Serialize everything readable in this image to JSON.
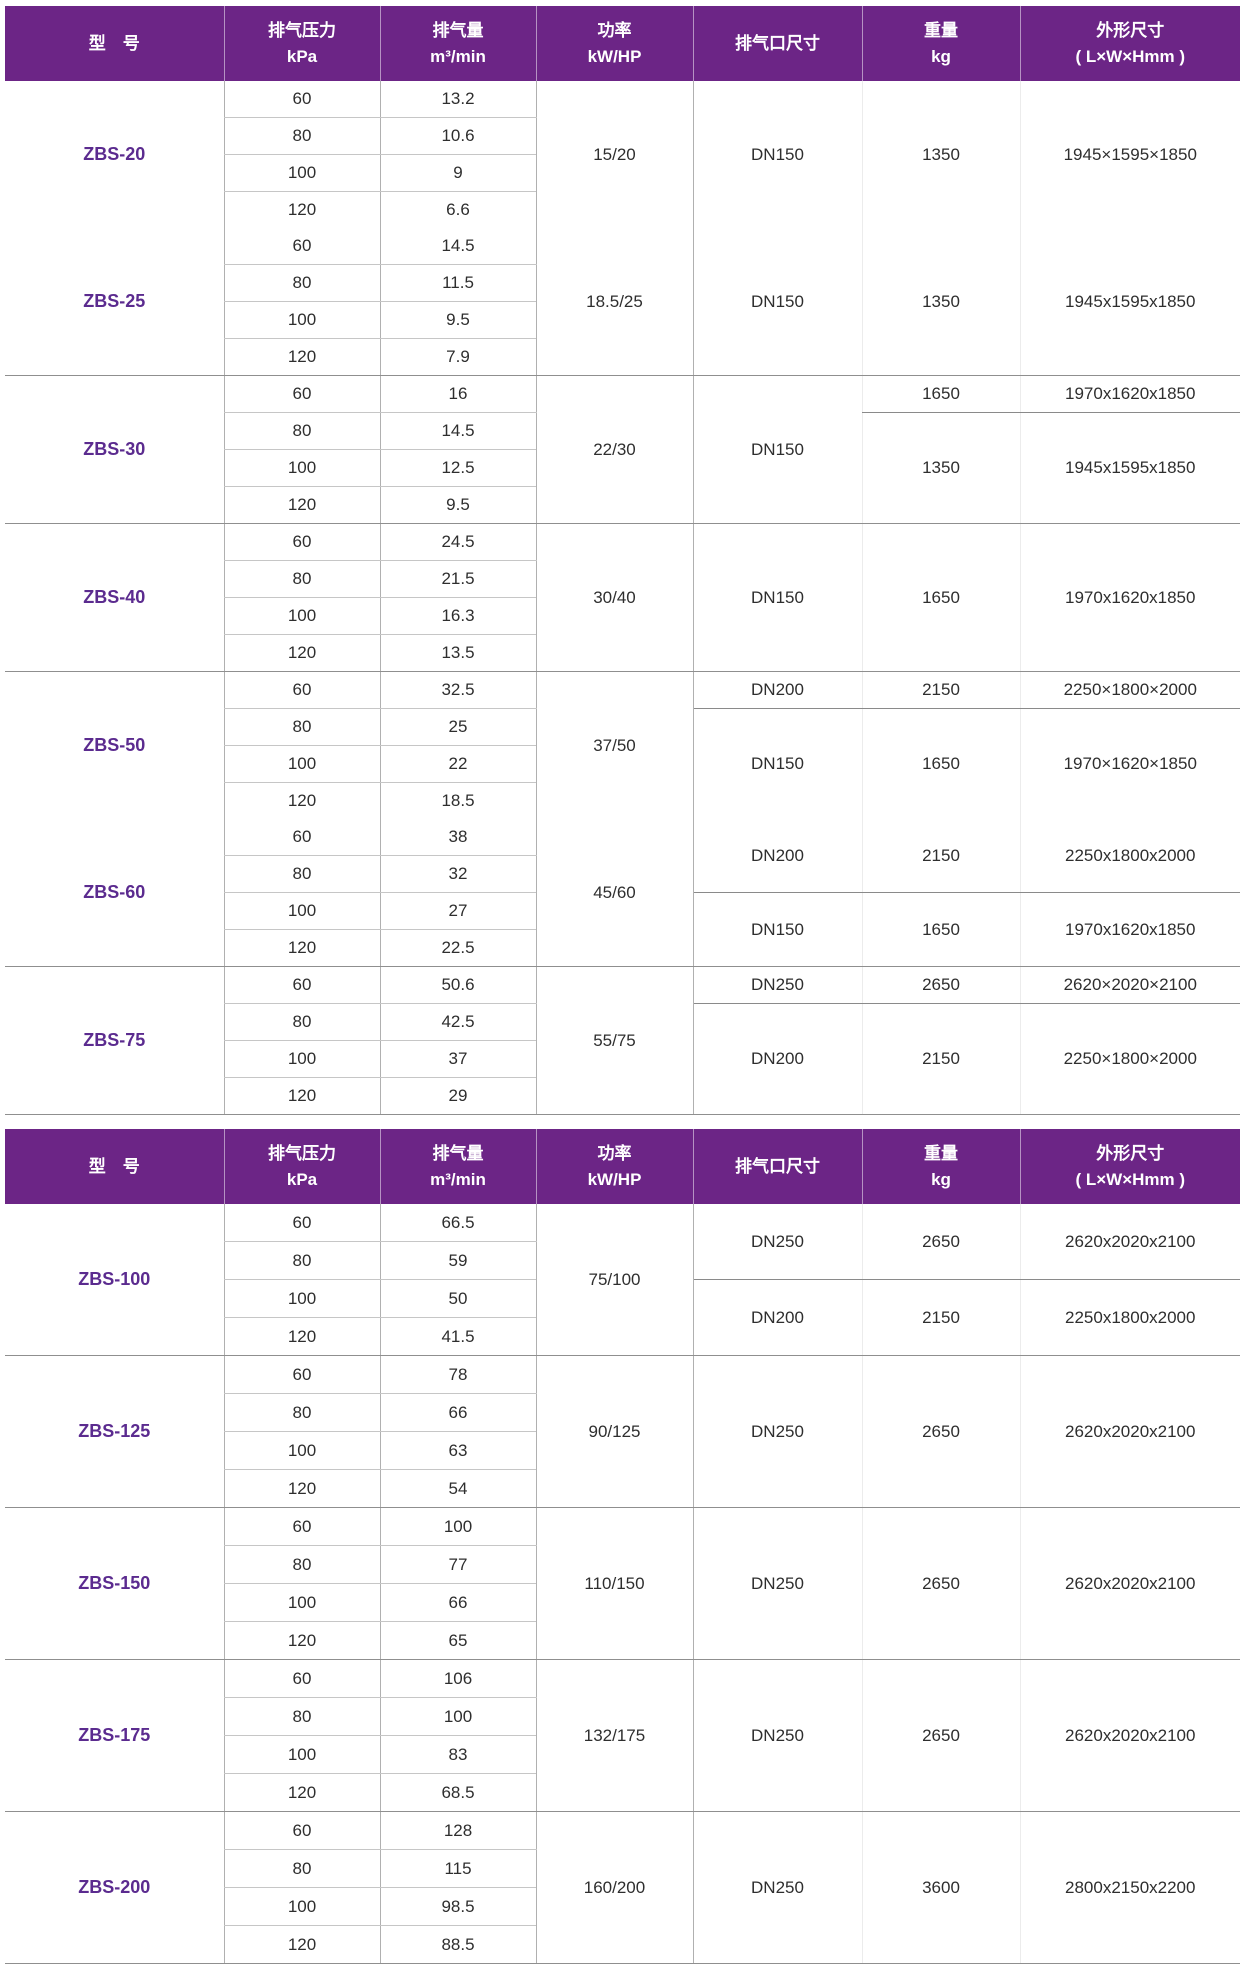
{
  "table": {
    "columns": {
      "model": [
        "型　号"
      ],
      "pressure": [
        "排气压力",
        "kPa"
      ],
      "volume": [
        "排气量",
        "m³/min"
      ],
      "power": [
        "功率",
        "kW/HP"
      ],
      "port": [
        "排气口尺寸"
      ],
      "weight": [
        "重量",
        "kg"
      ],
      "dims": [
        "外形尺寸",
        "( L×W×Hmm )"
      ]
    },
    "colors": {
      "header_bg": "#6C2586",
      "header_text": "#ffffff",
      "model_text": "#5B2B8F",
      "body_text": "#2e2e2e"
    },
    "sections": [
      {
        "models": [
          {
            "name": "ZBS-20",
            "power": "15/20",
            "rows": [
              [
                "60",
                "13.2"
              ],
              [
                "80",
                "10.6"
              ],
              [
                "100",
                "9"
              ],
              [
                "120",
                "6.6"
              ]
            ],
            "ports": [
              {
                "value": "DN150",
                "span": 4
              }
            ],
            "specs": [
              {
                "weight": "1350",
                "dims": "1945×1595×1850",
                "span": 4
              }
            ],
            "separator_after": false
          },
          {
            "name": "ZBS-25",
            "power": "18.5/25",
            "rows": [
              [
                "60",
                "14.5"
              ],
              [
                "80",
                "11.5"
              ],
              [
                "100",
                "9.5"
              ],
              [
                "120",
                "7.9"
              ]
            ],
            "ports": [
              {
                "value": "DN150",
                "span": 4
              }
            ],
            "specs": [
              {
                "weight": "1350",
                "dims": "1945x1595x1850",
                "span": 4
              }
            ],
            "separator_after": true
          },
          {
            "name": "ZBS-30",
            "power": "22/30",
            "rows": [
              [
                "60",
                "16"
              ],
              [
                "80",
                "14.5"
              ],
              [
                "100",
                "12.5"
              ],
              [
                "120",
                "9.5"
              ]
            ],
            "ports": [
              {
                "value": "DN150",
                "span": 4
              }
            ],
            "specs": [
              {
                "weight": "1650",
                "dims": "1970x1620x1850",
                "span": 1
              },
              {
                "weight": "1350",
                "dims": "1945x1595x1850",
                "span": 3
              }
            ],
            "separator_after": true
          },
          {
            "name": "ZBS-40",
            "power": "30/40",
            "rows": [
              [
                "60",
                "24.5"
              ],
              [
                "80",
                "21.5"
              ],
              [
                "100",
                "16.3"
              ],
              [
                "120",
                "13.5"
              ]
            ],
            "ports": [
              {
                "value": "DN150",
                "span": 4
              }
            ],
            "specs": [
              {
                "weight": "1650",
                "dims": "1970x1620x1850",
                "span": 4
              }
            ],
            "separator_after": true
          },
          {
            "name": "ZBS-50",
            "power": "37/50",
            "rows": [
              [
                "60",
                "32.5"
              ],
              [
                "80",
                "25"
              ],
              [
                "100",
                "22"
              ],
              [
                "120",
                "18.5"
              ]
            ],
            "ports": [
              {
                "value": "DN200",
                "span": 1
              },
              {
                "value": "DN150",
                "span": 3
              }
            ],
            "specs": [
              {
                "weight": "2150",
                "dims": "2250×1800×2000",
                "span": 1
              },
              {
                "weight": "1650",
                "dims": "1970×1620×1850",
                "span": 3
              }
            ],
            "separator_after": false
          },
          {
            "name": "ZBS-60",
            "power": "45/60",
            "rows": [
              [
                "60",
                "38"
              ],
              [
                "80",
                "32"
              ],
              [
                "100",
                "27"
              ],
              [
                "120",
                "22.5"
              ]
            ],
            "ports": [
              {
                "value": "DN200",
                "span": 2
              },
              {
                "value": "DN150",
                "span": 2
              }
            ],
            "specs": [
              {
                "weight": "2150",
                "dims": "2250x1800x2000",
                "span": 2
              },
              {
                "weight": "1650",
                "dims": "1970x1620x1850",
                "span": 2
              }
            ],
            "separator_after": true
          },
          {
            "name": "ZBS-75",
            "power": "55/75",
            "rows": [
              [
                "60",
                "50.6"
              ],
              [
                "80",
                "42.5"
              ],
              [
                "100",
                "37"
              ],
              [
                "120",
                "29"
              ]
            ],
            "ports": [
              {
                "value": "DN250",
                "span": 1
              },
              {
                "value": "DN200",
                "span": 3
              }
            ],
            "specs": [
              {
                "weight": "2650",
                "dims": "2620×2020×2100",
                "span": 1
              },
              {
                "weight": "2150",
                "dims": "2250×1800×2000",
                "span": 3
              }
            ],
            "separator_after": true
          }
        ]
      },
      {
        "models": [
          {
            "name": "ZBS-100",
            "power": "75/100",
            "rows": [
              [
                "60",
                "66.5"
              ],
              [
                "80",
                "59"
              ],
              [
                "100",
                "50"
              ],
              [
                "120",
                "41.5"
              ]
            ],
            "ports": [
              {
                "value": "DN250",
                "span": 2
              },
              {
                "value": "DN200",
                "span": 2
              }
            ],
            "specs": [
              {
                "weight": "2650",
                "dims": "2620x2020x2100",
                "span": 2
              },
              {
                "weight": "2150",
                "dims": "2250x1800x2000",
                "span": 2
              }
            ],
            "separator_after": true
          },
          {
            "name": "ZBS-125",
            "power": "90/125",
            "rows": [
              [
                "60",
                "78"
              ],
              [
                "80",
                "66"
              ],
              [
                "100",
                "63"
              ],
              [
                "120",
                "54"
              ]
            ],
            "ports": [
              {
                "value": "DN250",
                "span": 4
              }
            ],
            "specs": [
              {
                "weight": "2650",
                "dims": "2620x2020x2100",
                "span": 4
              }
            ],
            "separator_after": true
          },
          {
            "name": "ZBS-150",
            "power": "110/150",
            "rows": [
              [
                "60",
                "100"
              ],
              [
                "80",
                "77"
              ],
              [
                "100",
                "66"
              ],
              [
                "120",
                "65"
              ]
            ],
            "ports": [
              {
                "value": "DN250",
                "span": 4
              }
            ],
            "specs": [
              {
                "weight": "2650",
                "dims": "2620x2020x2100",
                "span": 4
              }
            ],
            "separator_after": true
          },
          {
            "name": "ZBS-175",
            "power": "132/175",
            "rows": [
              [
                "60",
                "106"
              ],
              [
                "80",
                "100"
              ],
              [
                "100",
                "83"
              ],
              [
                "120",
                "68.5"
              ]
            ],
            "ports": [
              {
                "value": "DN250",
                "span": 4
              }
            ],
            "specs": [
              {
                "weight": "2650",
                "dims": "2620x2020x2100",
                "span": 4
              }
            ],
            "separator_after": true
          },
          {
            "name": "ZBS-200",
            "power": "160/200",
            "rows": [
              [
                "60",
                "128"
              ],
              [
                "80",
                "115"
              ],
              [
                "100",
                "98.5"
              ],
              [
                "120",
                "88.5"
              ]
            ],
            "ports": [
              {
                "value": "DN250",
                "span": 4
              }
            ],
            "specs": [
              {
                "weight": "3600",
                "dims": "2800x2150x2200",
                "span": 4
              }
            ],
            "separator_after": true
          }
        ]
      }
    ]
  }
}
